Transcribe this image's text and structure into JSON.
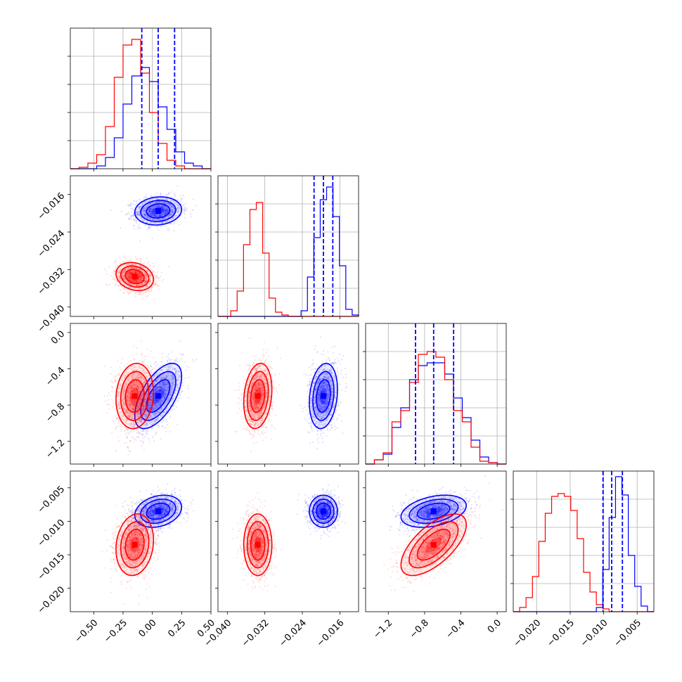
{
  "chart_data": {
    "type": "corner",
    "grid": true,
    "colors": {
      "series_a": "#0000ff",
      "series_b": "#ff0000"
    },
    "parameters": [
      {
        "index": 0,
        "range": [
          -0.7,
          0.5
        ],
        "ticks": [
          -0.5,
          -0.25,
          0.0,
          0.25,
          0.5
        ],
        "tick_labels": [
          "−0.50",
          "−0.25",
          "0.00",
          "0.25",
          "0.50"
        ],
        "quantiles_blue": [
          -0.09,
          0.05,
          0.19
        ]
      },
      {
        "index": 1,
        "range": [
          -0.042,
          -0.012
        ],
        "ticks": [
          -0.04,
          -0.032,
          -0.024,
          -0.016
        ],
        "tick_labels": [
          "−0.040",
          "−0.032",
          "−0.024",
          "−0.016"
        ],
        "quantiles_blue": [
          -0.0215,
          -0.0195,
          -0.0175
        ]
      },
      {
        "index": 2,
        "range": [
          -1.45,
          0.1
        ],
        "ticks": [
          -1.2,
          -0.8,
          -0.4,
          0.0
        ],
        "tick_labels": [
          "−1.2",
          "−0.8",
          "−0.4",
          "0.0"
        ],
        "quantiles_blue": [
          -0.9,
          -0.7,
          -0.48
        ]
      },
      {
        "index": 3,
        "range": [
          -0.0235,
          -0.0025
        ],
        "ticks": [
          -0.02,
          -0.015,
          -0.01,
          -0.005
        ],
        "tick_labels": [
          "−0.020",
          "−0.015",
          "−0.010",
          "−0.005"
        ],
        "quantiles_blue": [
          -0.0101,
          -0.0088,
          -0.0072
        ]
      }
    ],
    "series": [
      {
        "color": "#0000ff",
        "mean": [
          0.05,
          -0.0195,
          -0.7,
          -0.0085
        ],
        "std": [
          0.1,
          0.0015,
          0.18,
          0.0012
        ],
        "corr": {
          "0-2": 0.6,
          "2-3": 0.35,
          "0-3": 0.25,
          "0-1": 0.1,
          "1-2": 0.2,
          "1-3": 0.0
        },
        "hist": [
          [
            0,
            0,
            0,
            0.02,
            0.08,
            0.22,
            0.46,
            0.66,
            0.72,
            0.62,
            0.44,
            0.28,
            0.12,
            0.04,
            0.02,
            0
          ],
          [
            0,
            0,
            0,
            0,
            0,
            0,
            0,
            0,
            0,
            0,
            0,
            0,
            0,
            0.04,
            0.28,
            0.56,
            0.83,
            0.92,
            0.71,
            0.36,
            0.05,
            0.01
          ],
          [
            0,
            0.03,
            0.07,
            0.26,
            0.4,
            0.6,
            0.7,
            0.72,
            0.72,
            0.64,
            0.47,
            0.33,
            0.17,
            0.05,
            0.01,
            0
          ],
          [
            0,
            0,
            0,
            0,
            0,
            0,
            0,
            0,
            0,
            0,
            0,
            0,
            0,
            0.03,
            0.3,
            0.67,
            0.96,
            0.83,
            0.4,
            0.18,
            0.04,
            0
          ]
        ]
      },
      {
        "color": "#ff0000",
        "mean": [
          -0.15,
          -0.0335,
          -0.7,
          -0.0135
        ],
        "std": [
          0.08,
          0.0015,
          0.18,
          0.0023
        ],
        "corr": {
          "0-2": 0.1,
          "2-3": 0.65,
          "0-3": 0.15,
          "0-1": -0.2,
          "1-2": 0.2,
          "1-3": 0.0
        },
        "hist": [
          [
            0,
            0.01,
            0.04,
            0.1,
            0.3,
            0.65,
            0.88,
            0.92,
            0.68,
            0.4,
            0.18,
            0.06,
            0.02,
            0,
            0,
            0
          ],
          [
            0,
            0,
            0.04,
            0.18,
            0.51,
            0.76,
            0.81,
            0.45,
            0.13,
            0.03,
            0.01,
            0,
            0,
            0,
            0,
            0,
            0,
            0,
            0,
            0,
            0,
            0
          ],
          [
            0,
            0.03,
            0.08,
            0.3,
            0.38,
            0.58,
            0.78,
            0.8,
            0.76,
            0.6,
            0.38,
            0.3,
            0.12,
            0.02,
            0.01,
            0
          ],
          [
            0,
            0.03,
            0.1,
            0.25,
            0.5,
            0.7,
            0.82,
            0.84,
            0.82,
            0.72,
            0.52,
            0.28,
            0.14,
            0.05,
            0.02,
            0,
            0,
            0,
            0,
            0,
            0,
            0
          ]
        ]
      }
    ]
  }
}
